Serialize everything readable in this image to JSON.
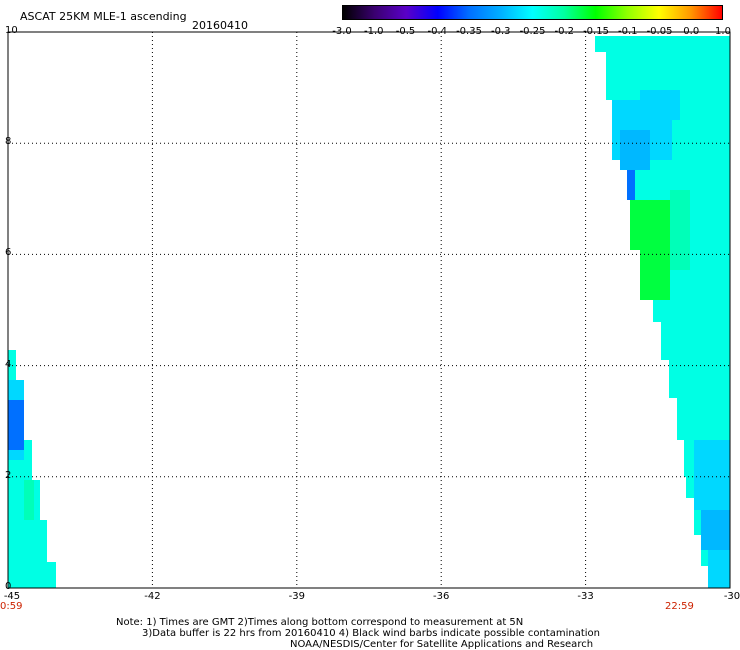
{
  "header": {
    "title": "ASCAT 25KM MLE-1 ascending",
    "date": "20160410"
  },
  "colorbar": {
    "ticks": [
      "-3.0",
      "-1.0",
      "-0.5",
      "-0.4",
      "-0.35",
      "-0.3",
      "-0.25",
      "-0.2",
      "-0.15",
      "-0.1",
      "-0.05",
      "0.0",
      "1.0"
    ],
    "colors": [
      "#000000",
      "#3a0070",
      "#5a00c8",
      "#0000ff",
      "#0070ff",
      "#00b0ff",
      "#00ffff",
      "#00ffa0",
      "#00ff00",
      "#90ff00",
      "#ffff00",
      "#ff9900",
      "#ff0000"
    ]
  },
  "map": {
    "x_ticks": [
      "-45",
      "-42",
      "-39",
      "-36",
      "-33",
      "-30"
    ],
    "y_ticks": [
      "0",
      "2",
      "4",
      "6",
      "8",
      "10"
    ],
    "time_left": "0:59",
    "time_right": "22:59",
    "colors": {
      "cyan": "#00ffe4",
      "cyan_green": "#00ffb8",
      "green": "#00ff40",
      "light_blue": "#00d8ff",
      "sky": "#00b8ff",
      "blue": "#0070ff"
    }
  },
  "notes": {
    "line1": "Note: 1) Times are GMT 2)Times along bottom correspond to measurement at 5N",
    "line2": "3)Data buffer is 22 hrs from 20160410 4) Black wind barbs indicate possible contamination",
    "line3": "NOAA/NESDIS/Center for Satellite Applications and Research"
  }
}
